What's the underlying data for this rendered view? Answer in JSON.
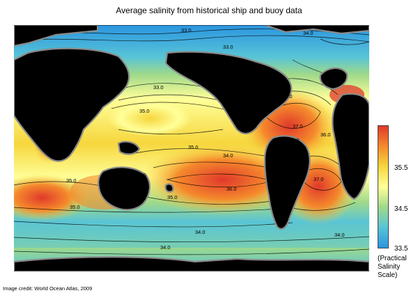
{
  "title": "Average salinity from historical ship and buoy data",
  "credit": "Image credit: World Ocean Atlas, 2009",
  "legend": {
    "ticks": [
      "35.5",
      "34.5",
      "33.5"
    ],
    "units": [
      "(Practical",
      "Salinity",
      "Scale)"
    ],
    "colors": [
      "#e0392b",
      "#f58a2c",
      "#f6d63d",
      "#ffff99",
      "#9fd98a",
      "#58c4d6",
      "#2b95e0"
    ]
  },
  "map_labels": [
    {
      "text": "32.0"
    },
    {
      "text": "33.0"
    },
    {
      "text": "34.0"
    },
    {
      "text": "33.0"
    },
    {
      "text": "33.0"
    },
    {
      "text": "35.0"
    },
    {
      "text": "36.0"
    },
    {
      "text": "37.0"
    },
    {
      "text": "36.0"
    },
    {
      "text": "35.0"
    },
    {
      "text": "34.0"
    },
    {
      "text": "35.0"
    },
    {
      "text": "35.0"
    },
    {
      "text": "36.0"
    },
    {
      "text": "37.0"
    },
    {
      "text": "35.0"
    },
    {
      "text": "35.0"
    },
    {
      "text": "34.0"
    },
    {
      "text": "34.0"
    },
    {
      "text": "34.0"
    },
    {
      "text": "35.0"
    },
    {
      "text": "36.0"
    }
  ],
  "palette": {
    "land": "#000000",
    "coast": "#8a8a8a",
    "deep_blue": "#2b95e0",
    "cyan": "#58c4d6",
    "green": "#9fd98a",
    "light_yellow": "#ffff99",
    "yellow": "#f6d63d",
    "orange": "#f58a2c",
    "red": "#e0392b"
  }
}
